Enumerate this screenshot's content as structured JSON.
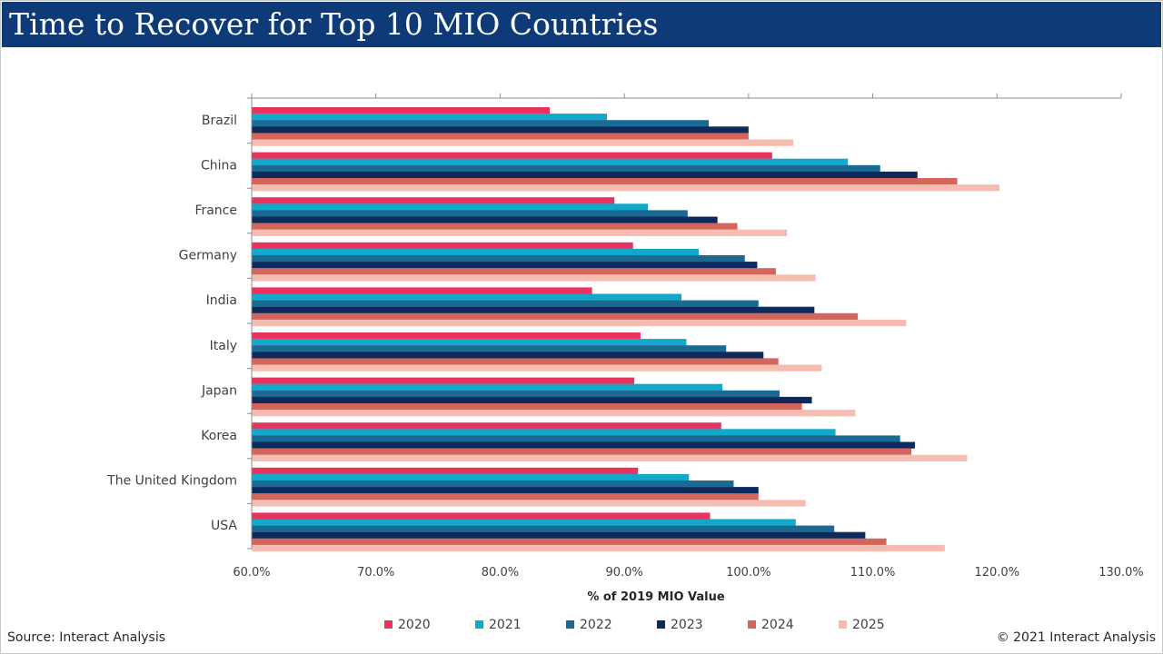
{
  "header": {
    "title": "Time to Recover for Top 10 MIO Countries"
  },
  "footer": {
    "source": "Source: Interact Analysis",
    "copyright": "© 2021 Interact Analysis"
  },
  "colors": {
    "header_bg": "#0e3a78",
    "s2020": "#e8335f",
    "s2021": "#12a8c9",
    "s2022": "#1b6a93",
    "s2023": "#0c2a5c",
    "s2024": "#d4655b",
    "s2025": "#f5bdb2"
  },
  "chart_data": {
    "type": "bar",
    "orientation": "horizontal",
    "title": "Time to Recover for Top 10 MIO Countries",
    "xlabel": "% of 2019 MIO Value",
    "ylabel": "",
    "xlim": [
      60,
      130
    ],
    "xticks": [
      60,
      70,
      80,
      90,
      100,
      110,
      120,
      130
    ],
    "xtick_labels": [
      "60.0%",
      "70.0%",
      "80.0%",
      "90.0%",
      "100.0%",
      "110.0%",
      "120.0%",
      "130.0%"
    ],
    "grid": false,
    "legend_position": "bottom",
    "categories": [
      "Brazil",
      "China",
      "France",
      "Germany",
      "India",
      "Italy",
      "Japan",
      "Korea",
      "The United Kingdom",
      "USA"
    ],
    "series": [
      {
        "name": "2020",
        "color": "#e8335f",
        "values": [
          84.0,
          101.9,
          89.2,
          90.7,
          87.4,
          91.3,
          90.8,
          97.8,
          91.1,
          96.9
        ]
      },
      {
        "name": "2021",
        "color": "#12a8c9",
        "values": [
          88.6,
          108.0,
          91.9,
          96.0,
          94.6,
          95.0,
          97.9,
          107.0,
          95.2,
          103.8
        ]
      },
      {
        "name": "2022",
        "color": "#1b6a93",
        "values": [
          96.8,
          110.6,
          95.1,
          99.7,
          100.8,
          98.2,
          102.5,
          112.2,
          98.8,
          106.9
        ]
      },
      {
        "name": "2023",
        "color": "#0c2a5c",
        "values": [
          100.0,
          113.6,
          97.5,
          100.7,
          105.3,
          101.2,
          105.1,
          113.4,
          100.8,
          109.4
        ]
      },
      {
        "name": "2024",
        "color": "#d4655b",
        "values": [
          100.0,
          116.8,
          99.1,
          102.2,
          108.8,
          102.4,
          104.3,
          113.1,
          100.8,
          111.1
        ]
      },
      {
        "name": "2025",
        "color": "#f5bdb2",
        "values": [
          103.6,
          120.2,
          103.1,
          105.4,
          112.7,
          105.9,
          108.6,
          117.6,
          104.6,
          115.8
        ]
      }
    ]
  }
}
